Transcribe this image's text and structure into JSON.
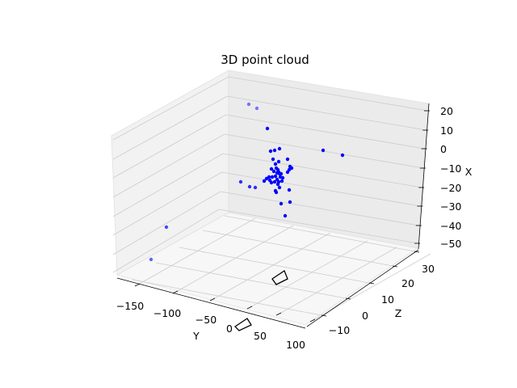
{
  "chart_data": {
    "type": "scatter",
    "title": "3D point cloud",
    "xlabel": "Y",
    "ylabel": "Z",
    "zlabel": "X",
    "y_ticks": [
      "−150",
      "−100",
      "−50",
      "0",
      "50",
      "100"
    ],
    "z_ticks": [
      "−10",
      "0",
      "10",
      "20",
      "30"
    ],
    "x_ticks": [
      "20",
      "10",
      "0",
      "−10",
      "−20",
      "−30",
      "−40",
      "−50"
    ],
    "grid": true,
    "colors": {
      "points": "#0000ff",
      "pane_left": "#f2f2f2",
      "pane_back": "#ebebeb",
      "pane_floor": "#f7f7f7",
      "grid": "#cccccc"
    },
    "markers": [
      "camera frustum",
      "camera frustum"
    ]
  }
}
